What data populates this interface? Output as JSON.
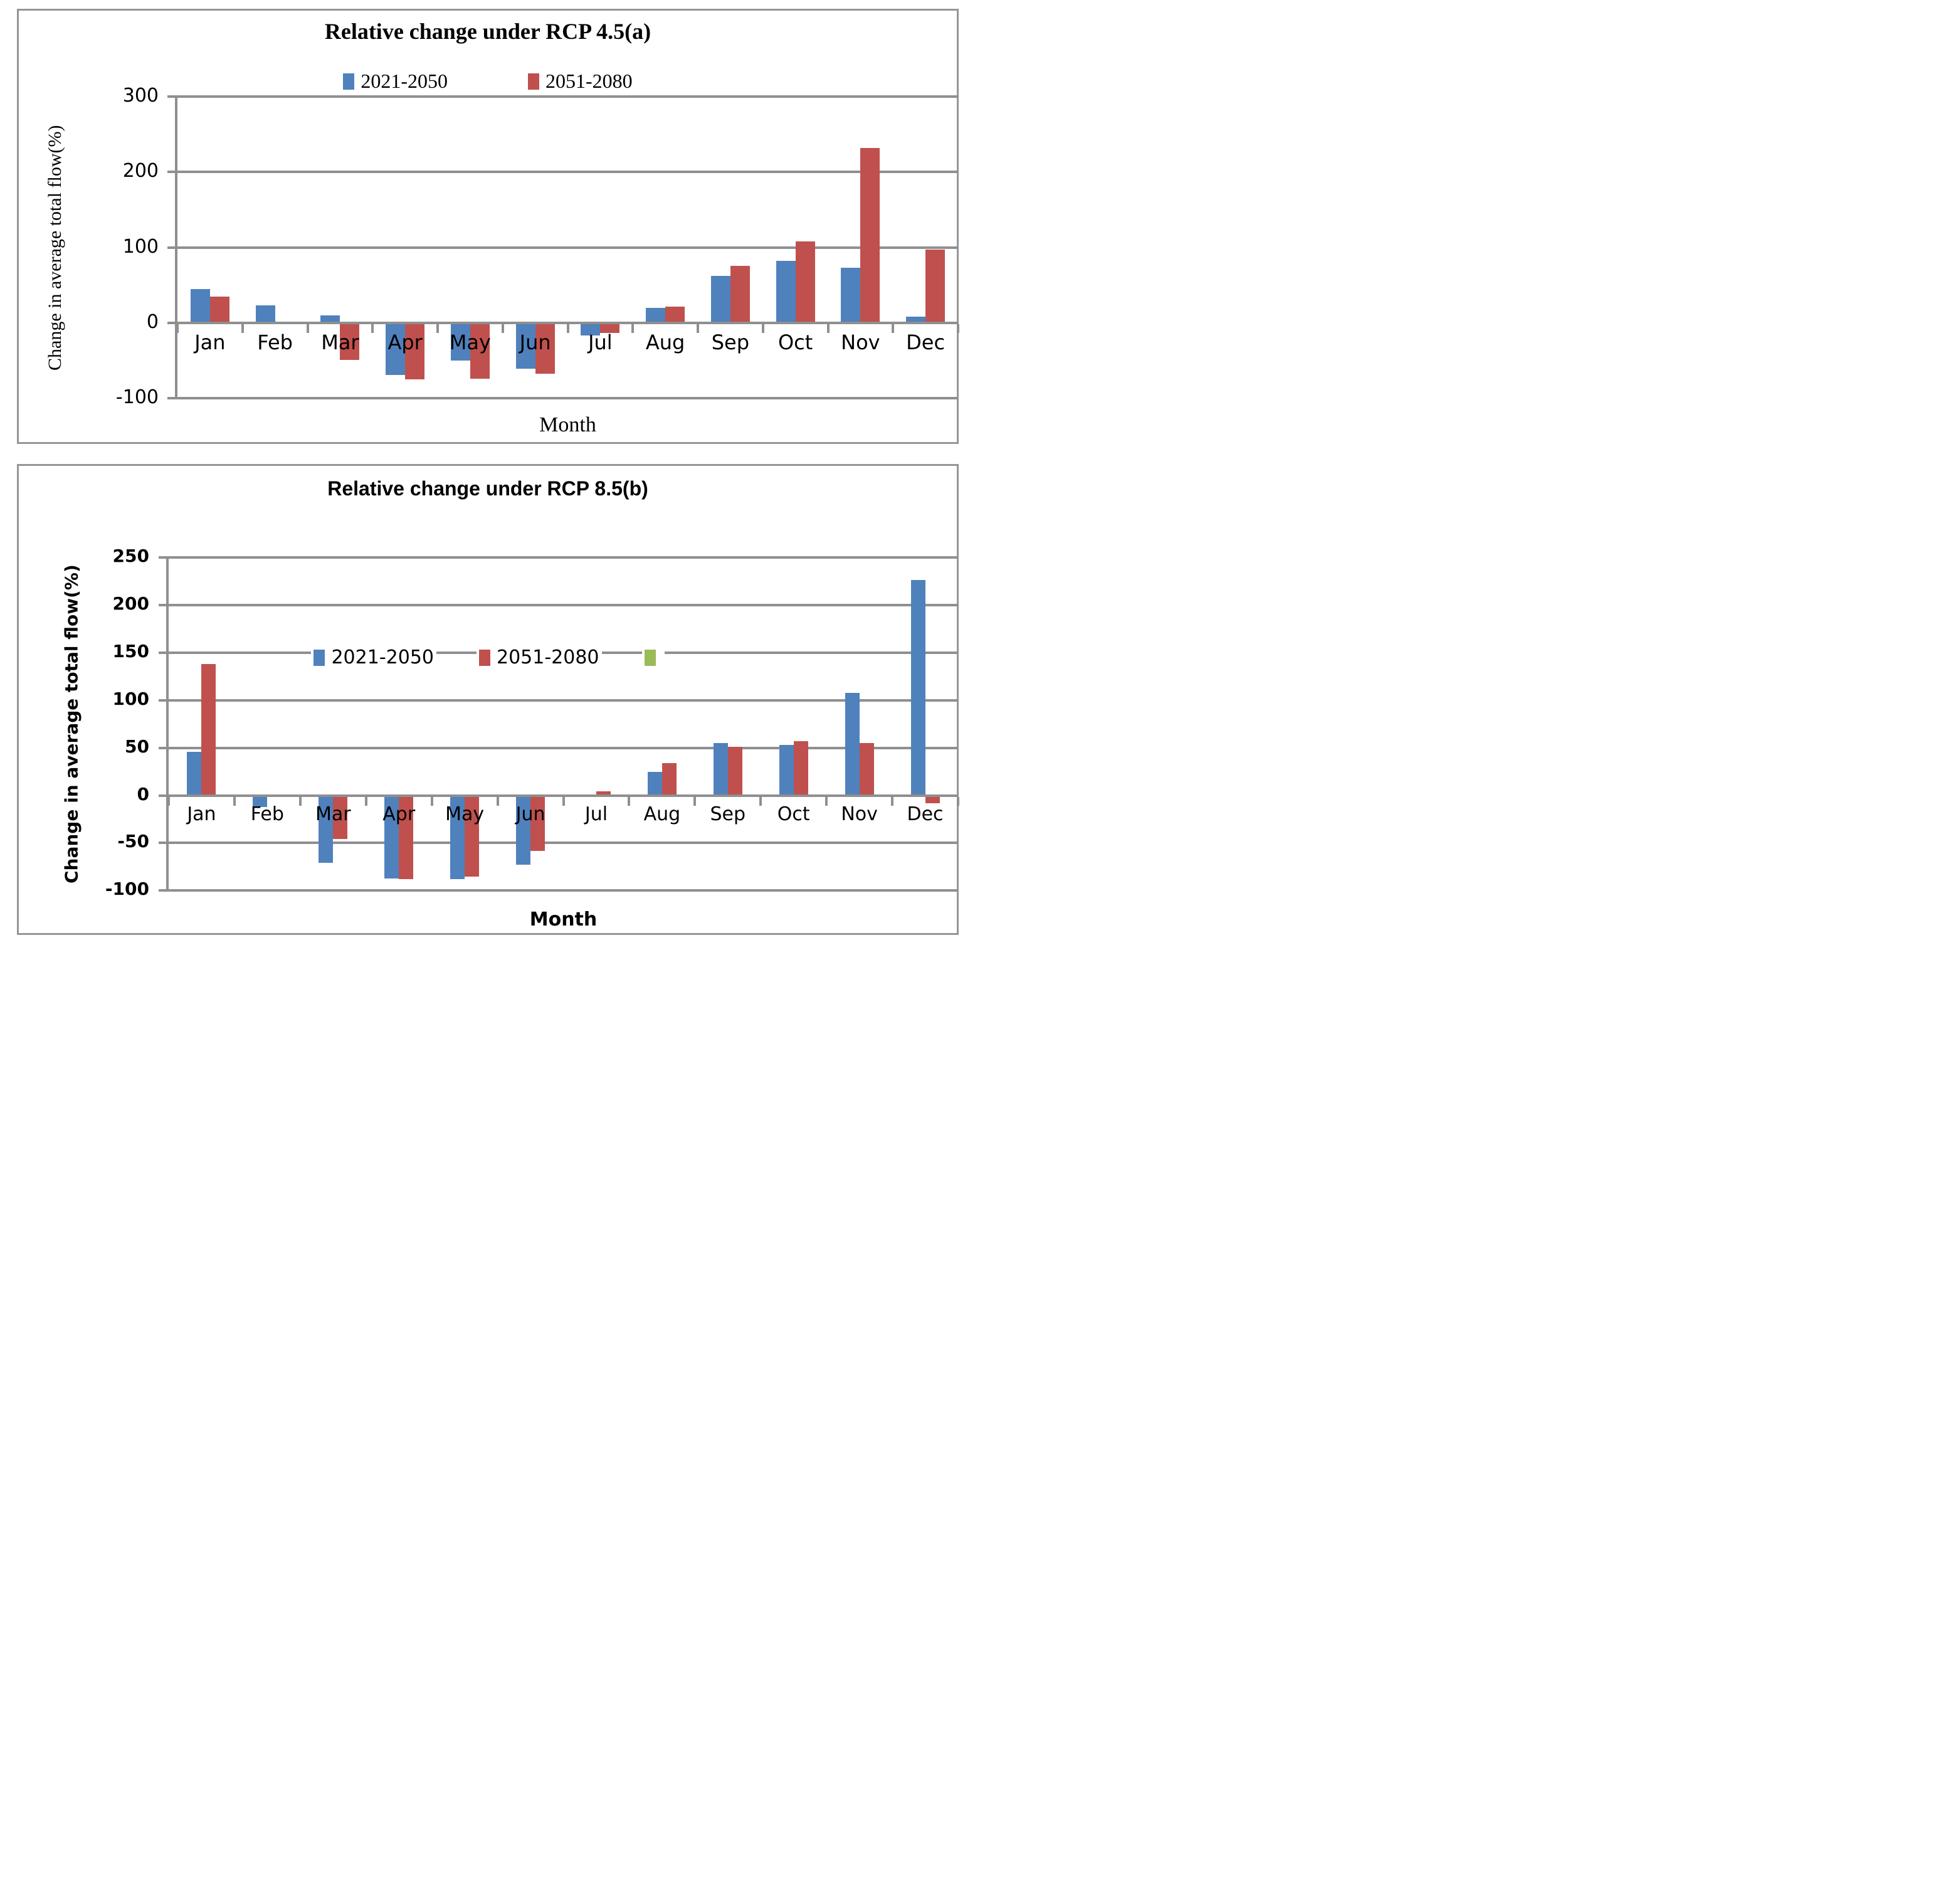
{
  "colors": {
    "series1": "#4F81BD",
    "series2": "#C0504D",
    "series3": "#9BBB59",
    "grid": "#8F8F8F",
    "axis": "#8F8F8F",
    "border": "#969696",
    "text": "#000000"
  },
  "chart_data": [
    {
      "type": "bar",
      "panel_label": "a",
      "title": "Relative change under RCP 4.5(a)",
      "xlabel": "Month",
      "ylabel": "Change in average total flow(%)",
      "categories": [
        "Jan",
        "Feb",
        "Mar",
        "Apr",
        "May",
        "Jun",
        "Jul",
        "Aug",
        "Sep",
        "Oct",
        "Nov",
        "Dec"
      ],
      "series": [
        {
          "name": "2021-2050",
          "color_key": "series1",
          "values": [
            45,
            23,
            10,
            -69,
            -50,
            -61,
            -17,
            20,
            62,
            82,
            73,
            8
          ]
        },
        {
          "name": "2051-2080",
          "color_key": "series2",
          "values": [
            35,
            0,
            -49,
            -75,
            -74,
            -67,
            -13,
            22,
            76,
            108,
            232,
            97
          ]
        }
      ],
      "ylim": [
        -100,
        300
      ],
      "ytick_step": 100,
      "yticks": [
        300,
        200,
        100,
        0,
        -100
      ],
      "grid": true,
      "legend_position": "top"
    },
    {
      "type": "bar",
      "panel_label": "b",
      "title": "Relative change under RCP 8.5(b)",
      "xlabel": "Month",
      "ylabel": "Change in average total flow(%)",
      "categories": [
        "Jan",
        "Feb",
        "Mar",
        "Apr",
        "May",
        "Jun",
        "Jul",
        "Aug",
        "Sep",
        "Oct",
        "Nov",
        "Dec"
      ],
      "series": [
        {
          "name": "2021-2050",
          "color_key": "series1",
          "values": [
            46,
            -12,
            -71,
            -87,
            -88,
            -73,
            0,
            25,
            55,
            53,
            108,
            226
          ]
        },
        {
          "name": "2051-2080",
          "color_key": "series2",
          "values": [
            138,
            0,
            -46,
            -88,
            -85,
            -58,
            4,
            34,
            51,
            57,
            55,
            -8
          ]
        },
        {
          "name": "",
          "color_key": "series3",
          "values": [
            0,
            0,
            0,
            0,
            0,
            0,
            0,
            0,
            0,
            0,
            0,
            0
          ]
        }
      ],
      "ylim": [
        -100,
        250
      ],
      "ytick_step": 50,
      "yticks": [
        250,
        200,
        150,
        100,
        50,
        0,
        -50,
        -100
      ],
      "grid": true,
      "legend_position": "inside-top"
    }
  ]
}
